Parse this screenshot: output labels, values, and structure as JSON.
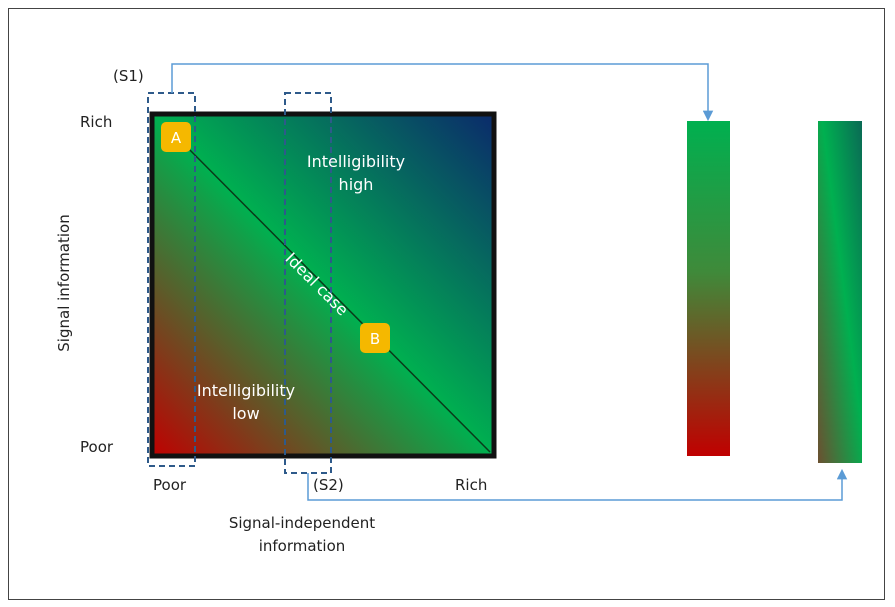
{
  "labels": {
    "s1": "(S1)",
    "s2": "(S2)",
    "y_rich": "Rich",
    "y_poor": "Poor",
    "x_poor": "Poor",
    "x_rich": "Rich",
    "y_axis": "Signal information",
    "x_axis_line1": "Signal-independent",
    "x_axis_line2": "information",
    "intel_high_line1": "Intelligibility",
    "intel_high_line2": "high",
    "intel_low_line1": "Intelligibility",
    "intel_low_line2": "low",
    "ideal": "Ideal case",
    "badge_a": "A",
    "badge_b": "B"
  },
  "colors": {
    "red": "#c00000",
    "green": "#00b050",
    "navy": "#0b2a6b",
    "badge": "#f5b800",
    "arrow": "#5b9bd5",
    "dash": "#2e5a8a"
  }
}
